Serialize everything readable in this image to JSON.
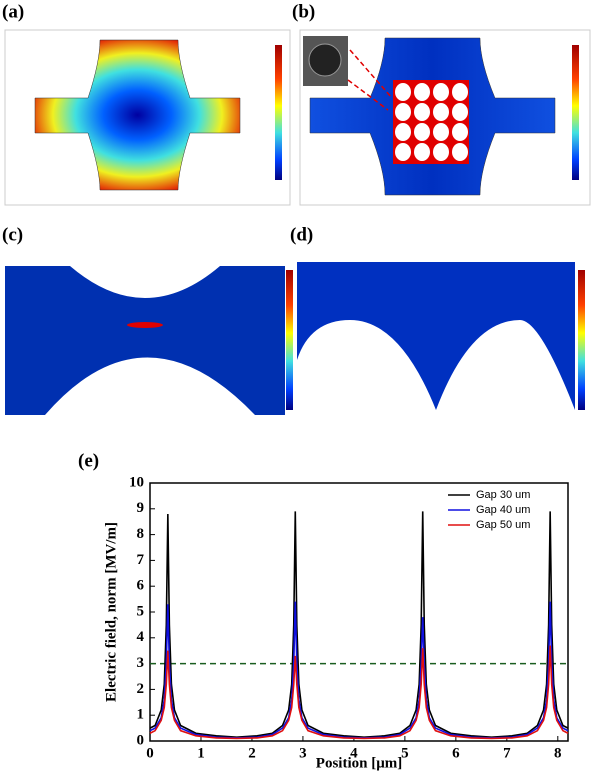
{
  "panels": [
    {
      "label": "(a)"
    },
    {
      "label": "(b)"
    },
    {
      "label": "(c)"
    },
    {
      "label": "(d)"
    },
    {
      "label": "(e)"
    }
  ],
  "chart_data": {
    "type": "line",
    "xlabel": "Position [μm]",
    "ylabel": "Electric field, norm [MV/m]",
    "x": [
      0,
      0.1,
      0.22,
      0.28,
      0.32,
      0.35,
      0.38,
      0.42,
      0.48,
      0.6,
      0.9,
      1.3,
      1.7,
      2.1,
      2.4,
      2.6,
      2.72,
      2.78,
      2.82,
      2.85,
      2.88,
      2.92,
      2.98,
      3.1,
      3.4,
      3.8,
      4.2,
      4.6,
      4.9,
      5.1,
      5.22,
      5.28,
      5.32,
      5.35,
      5.38,
      5.42,
      5.48,
      5.6,
      5.9,
      6.3,
      6.7,
      7.1,
      7.4,
      7.6,
      7.72,
      7.78,
      7.82,
      7.85,
      7.88,
      7.92,
      7.98,
      8.1,
      8.2
    ],
    "series": [
      {
        "name": "Gap 30 um",
        "color": "#000000",
        "values": [
          0.5,
          0.6,
          1.2,
          2.2,
          4.5,
          8.8,
          4.5,
          2.2,
          1.2,
          0.6,
          0.3,
          0.2,
          0.15,
          0.2,
          0.3,
          0.6,
          1.2,
          2.2,
          4.5,
          8.9,
          4.5,
          2.2,
          1.2,
          0.6,
          0.3,
          0.2,
          0.15,
          0.2,
          0.3,
          0.6,
          1.2,
          2.2,
          4.5,
          8.9,
          4.5,
          2.2,
          1.2,
          0.6,
          0.3,
          0.2,
          0.15,
          0.2,
          0.3,
          0.6,
          1.2,
          2.2,
          4.5,
          8.9,
          4.5,
          2.2,
          1.2,
          0.6,
          0.5
        ]
      },
      {
        "name": "Gap 40 um",
        "color": "#1010e0",
        "values": [
          0.4,
          0.5,
          0.9,
          1.6,
          3.0,
          5.3,
          3.0,
          1.6,
          0.9,
          0.5,
          0.25,
          0.15,
          0.12,
          0.15,
          0.25,
          0.5,
          0.9,
          1.6,
          3.0,
          5.4,
          3.0,
          1.6,
          0.9,
          0.5,
          0.25,
          0.15,
          0.12,
          0.15,
          0.25,
          0.5,
          0.9,
          1.6,
          3.0,
          4.8,
          3.0,
          1.6,
          0.9,
          0.5,
          0.25,
          0.15,
          0.12,
          0.15,
          0.25,
          0.5,
          0.9,
          1.6,
          3.0,
          5.4,
          3.0,
          1.6,
          0.9,
          0.5,
          0.4
        ]
      },
      {
        "name": "Gap 50 um",
        "color": "#e01010",
        "values": [
          0.3,
          0.4,
          0.8,
          1.3,
          2.2,
          3.5,
          2.2,
          1.3,
          0.8,
          0.4,
          0.2,
          0.12,
          0.1,
          0.12,
          0.2,
          0.4,
          0.8,
          1.3,
          2.2,
          3.3,
          2.2,
          1.3,
          0.8,
          0.4,
          0.2,
          0.12,
          0.1,
          0.12,
          0.2,
          0.4,
          0.8,
          1.3,
          2.2,
          3.6,
          2.2,
          1.3,
          0.8,
          0.4,
          0.2,
          0.12,
          0.1,
          0.12,
          0.2,
          0.4,
          0.8,
          1.3,
          2.2,
          3.7,
          2.2,
          1.3,
          0.8,
          0.4,
          0.3
        ]
      }
    ],
    "hline": 3,
    "hline_color": "#1b5e20",
    "xlim": [
      0,
      8.2
    ],
    "ylim": [
      0,
      10
    ],
    "xticks": [
      0,
      1,
      2,
      3,
      4,
      5,
      6,
      7,
      8
    ],
    "yticks": [
      0,
      1,
      2,
      3,
      4,
      5,
      6,
      7,
      8,
      9,
      10
    ],
    "legend": "upper right"
  }
}
